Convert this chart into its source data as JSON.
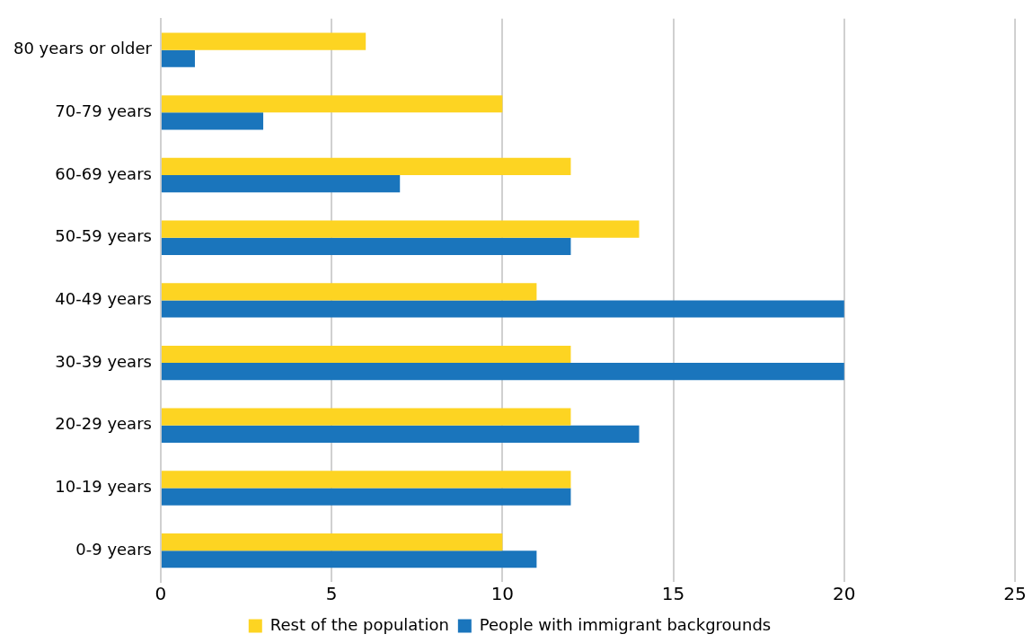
{
  "chart_data": {
    "type": "bar",
    "orientation": "horizontal",
    "categories": [
      "80 years or older",
      "70-79 years",
      "60-69 years",
      "50-59 years",
      "40-49 years",
      "30-39 years",
      "20-29 years",
      "10-19 years",
      "0-9 years"
    ],
    "series": [
      {
        "name": "Rest of the population",
        "color": "#fdd422",
        "values": [
          6,
          10,
          12,
          14,
          11,
          12,
          12,
          12,
          10
        ]
      },
      {
        "name": "People with immigrant backgrounds",
        "color": "#1a75bc",
        "values": [
          1,
          3,
          7,
          12,
          20,
          20,
          14,
          12,
          11
        ]
      }
    ],
    "xlim": [
      0,
      25
    ],
    "xticks": [
      0,
      5,
      10,
      15,
      20,
      25
    ],
    "grid": "x",
    "legend": "bottom"
  }
}
